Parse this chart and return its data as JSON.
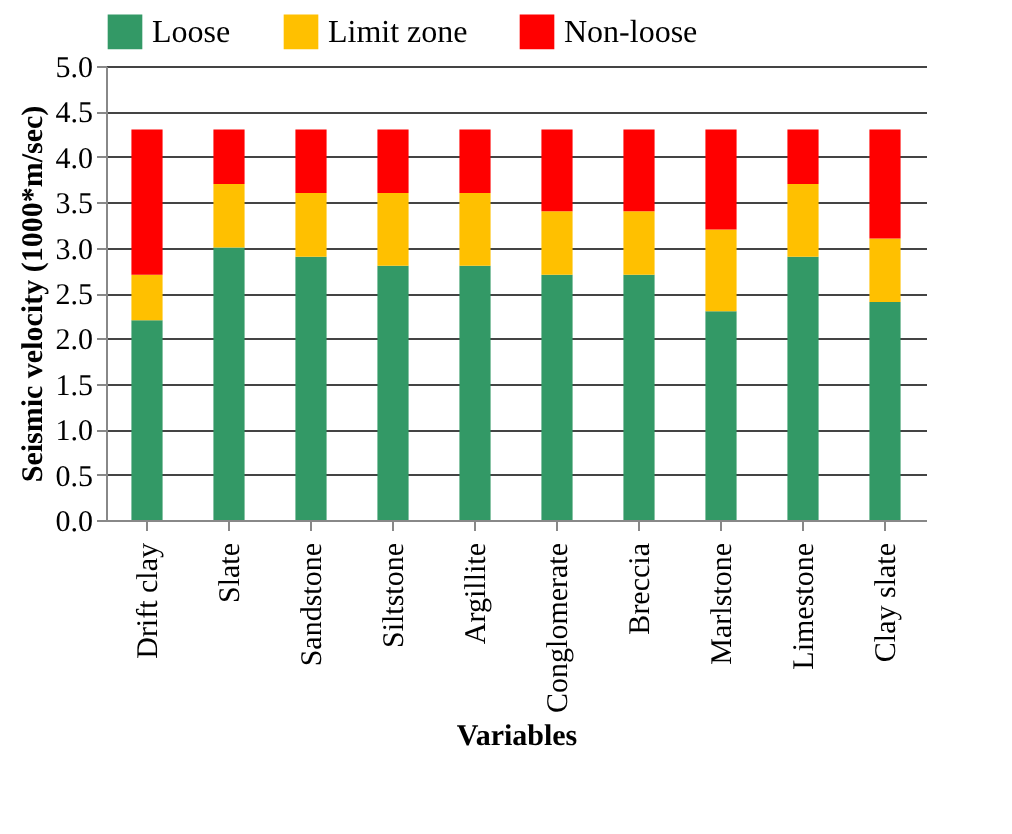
{
  "chart_data": {
    "type": "bar",
    "stacked": true,
    "xlabel": "Variables",
    "ylabel": "Seismic velocity (1000*m/sec)",
    "categories": [
      "Drift clay",
      "Slate",
      "Sandstone",
      "Siltstone",
      "Argillite",
      "Conglomerate",
      "Breccia",
      "Marlstone",
      "Limestone",
      "Clay slate"
    ],
    "series": [
      {
        "name": "Loose",
        "color": "#339966",
        "values": [
          2.2,
          3.0,
          2.9,
          2.8,
          2.8,
          2.7,
          2.7,
          2.3,
          2.9,
          2.4
        ]
      },
      {
        "name": "Limit zone",
        "color": "#ffc000",
        "values": [
          0.5,
          0.7,
          0.7,
          0.8,
          0.8,
          0.7,
          0.7,
          0.9,
          0.8,
          0.7
        ]
      },
      {
        "name": "Non-loose",
        "color": "#ff0000",
        "values": [
          1.6,
          0.6,
          0.7,
          0.7,
          0.7,
          0.9,
          0.9,
          1.1,
          0.6,
          1.2
        ]
      }
    ],
    "ylim": [
      0,
      5
    ],
    "yticks": [
      {
        "value": 0,
        "label": "0.0"
      },
      {
        "value": 0.5,
        "label": "0.5"
      },
      {
        "value": 1,
        "label": "1.0"
      },
      {
        "value": 1.5,
        "label": "1.5"
      },
      {
        "value": 2,
        "label": "2.0"
      },
      {
        "value": 2.5,
        "label": "2.5"
      },
      {
        "value": 3,
        "label": "3.0"
      },
      {
        "value": 3.5,
        "label": "3.5"
      },
      {
        "value": 4,
        "label": "4.0"
      },
      {
        "value": 4.5,
        "label": "4.5"
      },
      {
        "value": 5,
        "label": "5.0"
      }
    ],
    "grid": "y",
    "legend": "top"
  }
}
